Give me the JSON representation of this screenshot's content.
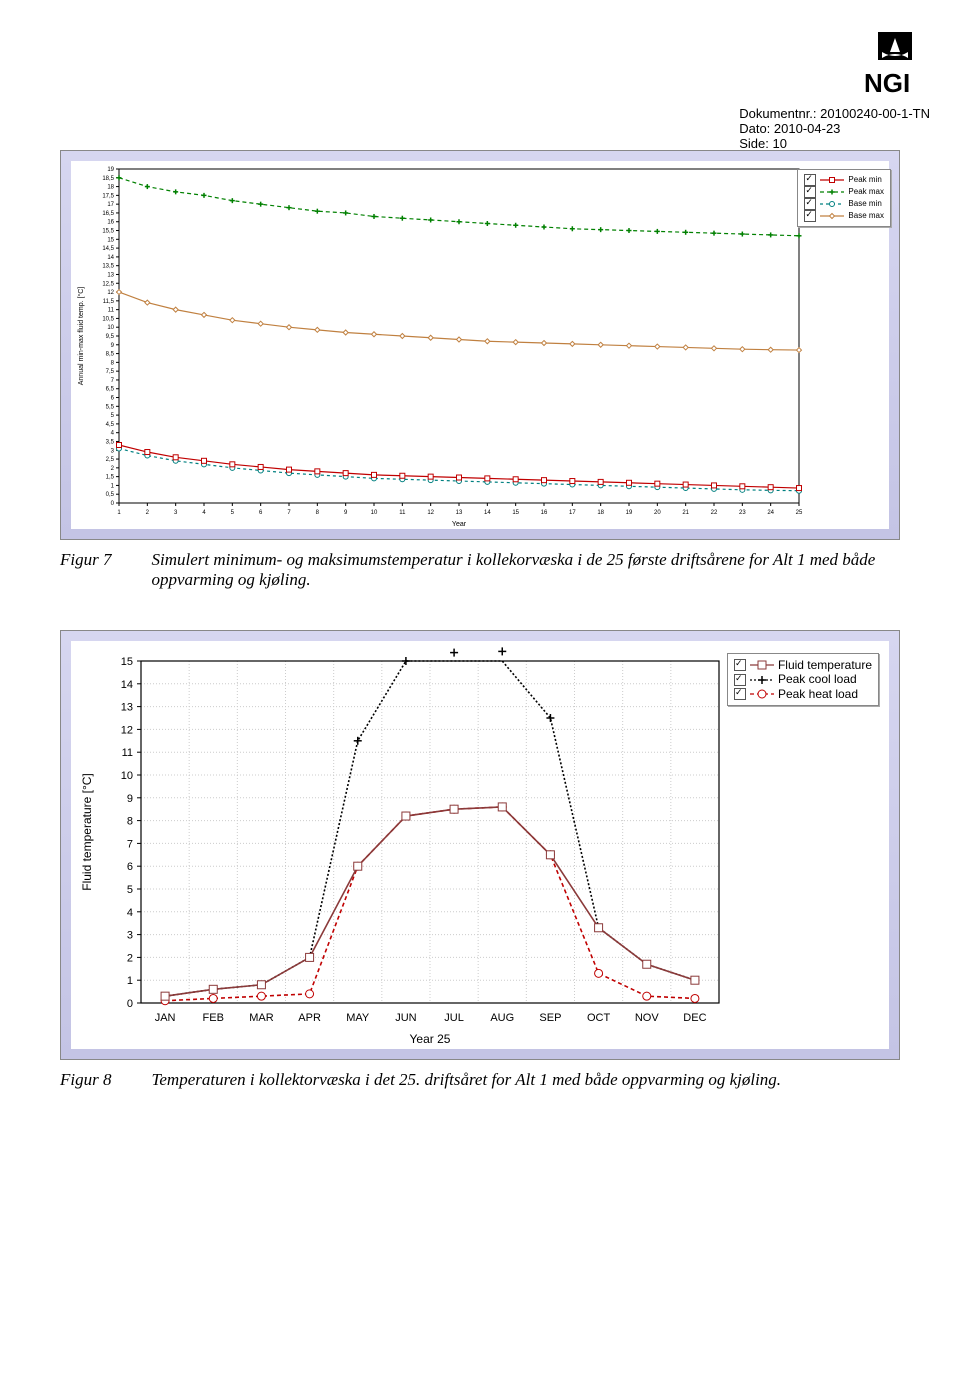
{
  "header": {
    "docnr": "Dokumentnr.: 20100240-00-1-TN",
    "date": "Dato: 2010-04-23",
    "side": "Side: 10",
    "logo_text": "NGI"
  },
  "chart1": {
    "type": "line",
    "background_color": "#d6d6f0",
    "plot_bg": "#ffffff",
    "ylabel": "Annual min-max fluid temp. [°C]",
    "xlabel": "Year",
    "ylim": [
      0,
      19
    ],
    "ytick_step": 0.5,
    "xlim": [
      1,
      25
    ],
    "xtick_step": 1,
    "yticks": [
      "0",
      "0,5",
      "1",
      "1,5",
      "2",
      "2,5",
      "3",
      "3,5",
      "4",
      "4,5",
      "5",
      "5,5",
      "6",
      "6,5",
      "7",
      "7,5",
      "8",
      "8,5",
      "9",
      "9,5",
      "10",
      "10,5",
      "11",
      "11,5",
      "12",
      "12,5",
      "13",
      "13,5",
      "14",
      "14,5",
      "15",
      "15,5",
      "16",
      "16,5",
      "17",
      "17,5",
      "18",
      "18,5",
      "19"
    ],
    "legend": [
      {
        "label": "Peak min",
        "color": "#c00000",
        "marker": "square",
        "dash": "0"
      },
      {
        "label": "Peak max",
        "color": "#008000",
        "marker": "plus",
        "dash": "4,3"
      },
      {
        "label": "Base min",
        "color": "#008080",
        "marker": "circle",
        "dash": "3,3"
      },
      {
        "label": "Base max",
        "color": "#c08040",
        "marker": "diamond",
        "dash": "0"
      }
    ],
    "series": {
      "peak_max": [
        18.5,
        18.0,
        17.7,
        17.5,
        17.2,
        17.0,
        16.8,
        16.6,
        16.5,
        16.3,
        16.2,
        16.1,
        16.0,
        15.9,
        15.8,
        15.7,
        15.6,
        15.55,
        15.5,
        15.45,
        15.4,
        15.35,
        15.3,
        15.25,
        15.2
      ],
      "base_max": [
        12.0,
        11.4,
        11.0,
        10.7,
        10.4,
        10.2,
        10.0,
        9.85,
        9.7,
        9.6,
        9.5,
        9.4,
        9.3,
        9.2,
        9.15,
        9.1,
        9.05,
        9.0,
        8.95,
        8.9,
        8.85,
        8.8,
        8.75,
        8.72,
        8.7
      ],
      "peak_min": [
        3.3,
        2.9,
        2.6,
        2.4,
        2.2,
        2.05,
        1.9,
        1.8,
        1.7,
        1.6,
        1.55,
        1.5,
        1.45,
        1.4,
        1.35,
        1.3,
        1.25,
        1.2,
        1.15,
        1.1,
        1.05,
        1.0,
        0.95,
        0.9,
        0.85
      ],
      "base_min": [
        3.1,
        2.7,
        2.4,
        2.2,
        2.0,
        1.85,
        1.7,
        1.6,
        1.5,
        1.4,
        1.35,
        1.3,
        1.25,
        1.2,
        1.15,
        1.1,
        1.05,
        1.0,
        0.95,
        0.9,
        0.85,
        0.8,
        0.75,
        0.72,
        0.7
      ]
    },
    "grid_color": "#d0d0d0",
    "label_fontsize": 7,
    "tick_fontsize": 6
  },
  "caption1": {
    "label": "Figur 7",
    "text": "Simulert minimum- og maksimumstemperatur i kollekorvæska i de 25 første driftsårene for Alt 1 med både oppvarming og kjøling."
  },
  "chart2": {
    "type": "line",
    "background_color": "#d6d6f0",
    "plot_bg": "#ffffff",
    "ylabel": "Fluid temperature [°C]",
    "xlabel": "Year 25",
    "ylim": [
      0,
      15
    ],
    "ytick_step": 1,
    "yticks": [
      "0",
      "1",
      "2",
      "3",
      "4",
      "5",
      "6",
      "7",
      "8",
      "9",
      "10",
      "11",
      "12",
      "13",
      "14",
      "15"
    ],
    "categories": [
      "JAN",
      "FEB",
      "MAR",
      "APR",
      "MAY",
      "JUN",
      "JUL",
      "AUG",
      "SEP",
      "OCT",
      "NOV",
      "DEC"
    ],
    "legend": [
      {
        "label": "Fluid temperature",
        "color": "#8b3a3a",
        "marker": "square",
        "dash": "0"
      },
      {
        "label": "Peak cool load",
        "color": "#000000",
        "marker": "plus",
        "dash": "2,2"
      },
      {
        "label": "Peak heat load",
        "color": "#c00000",
        "marker": "circle",
        "dash": "4,3"
      }
    ],
    "series": {
      "fluid": [
        0.3,
        0.6,
        0.8,
        2.0,
        6.0,
        8.2,
        8.5,
        8.6,
        6.5,
        3.3,
        1.7,
        1.0
      ],
      "peakcool": [
        0.3,
        0.6,
        0.8,
        2.0,
        11.5,
        15.0,
        15.7,
        15.8,
        12.5,
        3.3,
        1.7,
        1.0
      ],
      "peakheat": [
        0.1,
        0.2,
        0.3,
        0.4,
        6.0,
        8.2,
        8.5,
        8.6,
        6.5,
        1.3,
        0.3,
        0.2
      ]
    },
    "grid_color": "#cccccc",
    "label_fontsize": 12,
    "tick_fontsize": 11
  },
  "caption2": {
    "label": "Figur 8",
    "text": "Temperaturen i kollektorvæska i det 25. driftsåret for Alt 1 med både oppvarming og kjøling."
  }
}
